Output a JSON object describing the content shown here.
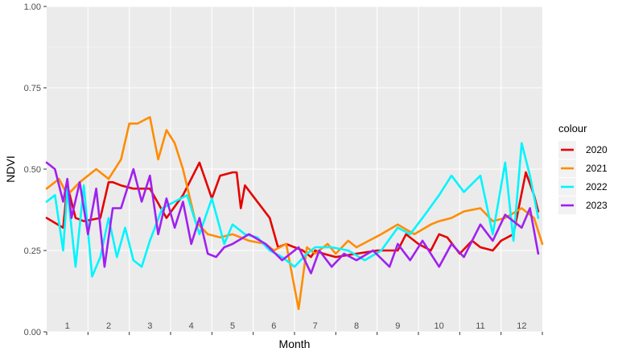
{
  "chart_data": {
    "type": "line",
    "xlabel": "Month",
    "ylabel": "NDVI",
    "ylim": [
      0,
      1
    ],
    "xlim": [
      0.5,
      12.5
    ],
    "y_ticks": [
      "0.00",
      "0.25",
      "0.50",
      "0.75",
      "1.00"
    ],
    "y_tick_values": [
      0,
      0.25,
      0.5,
      0.75,
      1
    ],
    "month_labels": [
      "1",
      "2",
      "3",
      "4",
      "5",
      "6",
      "7",
      "8",
      "9",
      "10",
      "11",
      "12"
    ],
    "grid": true,
    "legend": {
      "title": "colour",
      "position": "right"
    },
    "series": [
      {
        "name": "2020",
        "color": "#e60000",
        "x": [
          0.5,
          0.9,
          1.0,
          1.2,
          1.4,
          1.8,
          2.0,
          2.1,
          2.3,
          2.6,
          3.0,
          3.4,
          3.8,
          4.2,
          4.5,
          4.7,
          5.0,
          5.1,
          5.2,
          5.3,
          5.6,
          5.9,
          6.1,
          6.3,
          6.5,
          6.7,
          6.9,
          7.0,
          7.2,
          7.5,
          8.0,
          8.5,
          9.0,
          9.2,
          9.5,
          9.8,
          10.0,
          10.2,
          10.5,
          10.8,
          11.0,
          11.3,
          11.5,
          11.8,
          12.1,
          12.3,
          12.4
        ],
        "y": [
          0.35,
          0.32,
          0.45,
          0.35,
          0.34,
          0.35,
          0.46,
          0.46,
          0.45,
          0.44,
          0.44,
          0.35,
          0.42,
          0.52,
          0.41,
          0.48,
          0.49,
          0.49,
          0.38,
          0.45,
          0.4,
          0.35,
          0.26,
          0.27,
          0.26,
          0.25,
          0.23,
          0.25,
          0.24,
          0.23,
          0.24,
          0.25,
          0.25,
          0.3,
          0.27,
          0.25,
          0.3,
          0.29,
          0.24,
          0.28,
          0.26,
          0.25,
          0.28,
          0.3,
          0.49,
          0.42,
          0.37
        ]
      },
      {
        "name": "2021",
        "color": "#ff8c00",
        "x": [
          0.5,
          0.8,
          1.0,
          1.3,
          1.7,
          2.0,
          2.3,
          2.5,
          2.7,
          3.0,
          3.2,
          3.4,
          3.6,
          3.8,
          4.1,
          4.4,
          4.7,
          5.0,
          5.2,
          5.4,
          5.8,
          6.0,
          6.3,
          6.6,
          6.8,
          7.0,
          7.3,
          7.5,
          7.8,
          8.0,
          8.3,
          8.6,
          9.0,
          9.4,
          9.8,
          10.0,
          10.3,
          10.6,
          11.0,
          11.3,
          11.6,
          12.0,
          12.3,
          12.5
        ],
        "y": [
          0.44,
          0.47,
          0.42,
          0.46,
          0.5,
          0.47,
          0.53,
          0.64,
          0.64,
          0.66,
          0.53,
          0.62,
          0.58,
          0.5,
          0.34,
          0.3,
          0.29,
          0.3,
          0.29,
          0.28,
          0.27,
          0.25,
          0.27,
          0.07,
          0.26,
          0.24,
          0.27,
          0.24,
          0.28,
          0.26,
          0.28,
          0.3,
          0.33,
          0.3,
          0.33,
          0.34,
          0.35,
          0.37,
          0.38,
          0.34,
          0.35,
          0.38,
          0.35,
          0.27
        ]
      },
      {
        "name": "2022",
        "color": "#00f5ff",
        "x": [
          0.5,
          0.7,
          0.9,
          1.0,
          1.2,
          1.4,
          1.6,
          1.8,
          2.0,
          2.2,
          2.4,
          2.6,
          2.8,
          3.0,
          3.3,
          3.6,
          3.9,
          4.2,
          4.5,
          4.8,
          5.0,
          5.3,
          5.6,
          5.9,
          6.2,
          6.5,
          6.8,
          7.0,
          7.4,
          7.8,
          8.2,
          8.6,
          9.0,
          9.3,
          9.6,
          10.0,
          10.3,
          10.6,
          11.0,
          11.3,
          11.6,
          11.8,
          12.0,
          12.2,
          12.4
        ],
        "y": [
          0.4,
          0.42,
          0.25,
          0.44,
          0.2,
          0.45,
          0.17,
          0.23,
          0.35,
          0.23,
          0.32,
          0.22,
          0.2,
          0.28,
          0.38,
          0.4,
          0.42,
          0.3,
          0.41,
          0.27,
          0.33,
          0.3,
          0.29,
          0.25,
          0.23,
          0.2,
          0.24,
          0.26,
          0.26,
          0.25,
          0.22,
          0.25,
          0.32,
          0.3,
          0.35,
          0.42,
          0.48,
          0.43,
          0.48,
          0.3,
          0.52,
          0.28,
          0.58,
          0.48,
          0.35
        ]
      },
      {
        "name": "2023",
        "color": "#a020f0",
        "x": [
          0.5,
          0.7,
          0.9,
          1.0,
          1.1,
          1.3,
          1.5,
          1.7,
          1.9,
          2.1,
          2.3,
          2.6,
          2.8,
          3.0,
          3.2,
          3.4,
          3.6,
          3.8,
          4.0,
          4.2,
          4.4,
          4.6,
          4.8,
          5.0,
          5.4,
          5.8,
          6.2,
          6.6,
          6.9,
          7.1,
          7.4,
          7.7,
          8.0,
          8.4,
          8.8,
          9.0,
          9.3,
          9.6,
          10.0,
          10.3,
          10.6,
          11.0,
          11.3,
          11.6,
          12.0,
          12.2,
          12.4
        ],
        "y": [
          0.52,
          0.5,
          0.4,
          0.47,
          0.35,
          0.46,
          0.3,
          0.44,
          0.2,
          0.38,
          0.38,
          0.5,
          0.4,
          0.48,
          0.3,
          0.41,
          0.32,
          0.4,
          0.27,
          0.35,
          0.24,
          0.23,
          0.26,
          0.27,
          0.3,
          0.27,
          0.22,
          0.26,
          0.18,
          0.25,
          0.2,
          0.24,
          0.22,
          0.25,
          0.2,
          0.27,
          0.22,
          0.28,
          0.2,
          0.27,
          0.23,
          0.33,
          0.28,
          0.36,
          0.32,
          0.38,
          0.24
        ]
      }
    ]
  }
}
